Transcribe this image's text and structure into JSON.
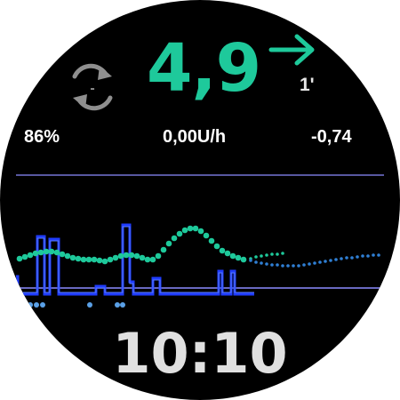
{
  "glucose": {
    "value": "4,9",
    "trend_icon": "arrow-right-icon",
    "minutes_ago": "1'",
    "color": "#1ec99b"
  },
  "status_icon": "loop-sync-icon",
  "status_symbol": "-",
  "stats": {
    "battery": "86%",
    "basal_rate": "0,00U/h",
    "delta": "-0,74"
  },
  "clock": {
    "time": "10:10"
  },
  "colors": {
    "background": "#000000",
    "glucose_points": "#1ec99b",
    "prediction_points": "#2f7fd4",
    "basal_line": "#1f3cff",
    "target_line": "#8c8cff",
    "bolus_marks": "#5aa0e6",
    "icon_gray": "#8f8f8f"
  }
}
